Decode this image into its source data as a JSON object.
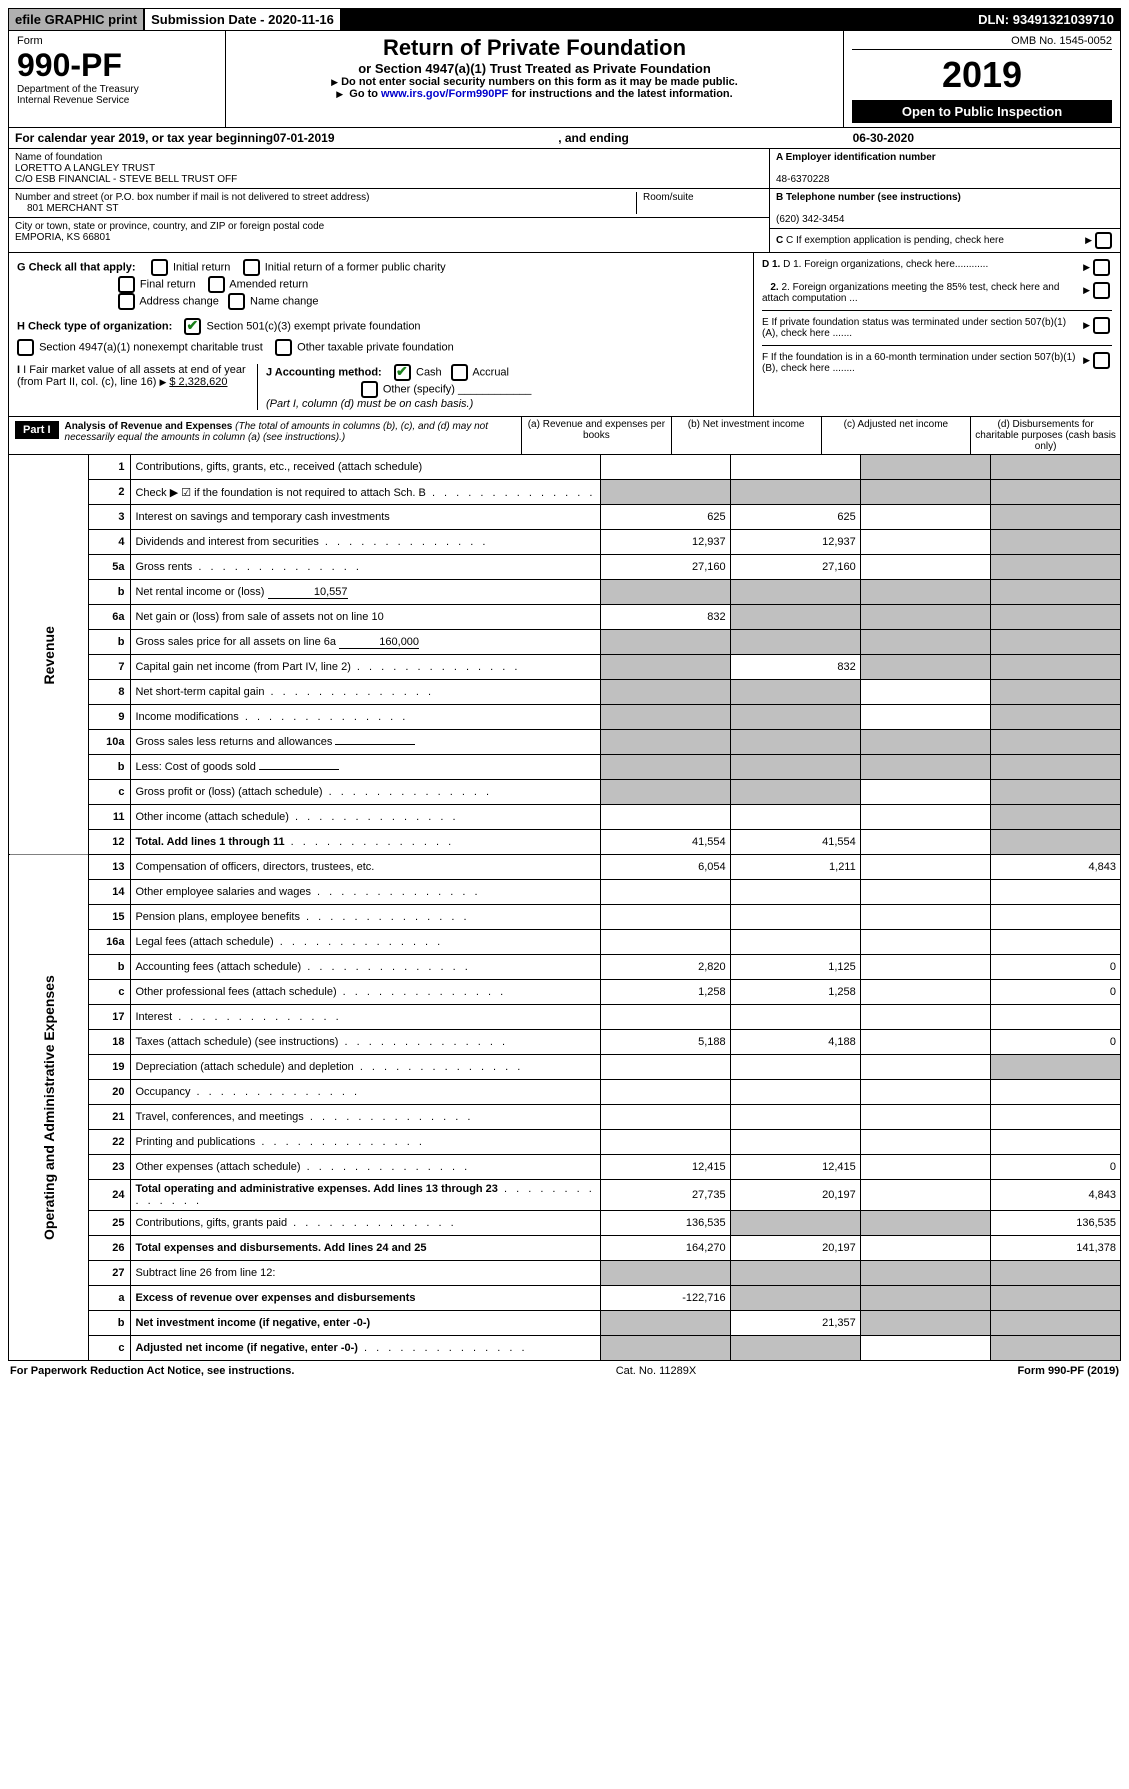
{
  "topbar": {
    "efile": "efile GRAPHIC print",
    "subdate_label": "Submission Date - ",
    "subdate": "2020-11-16",
    "dln_label": "DLN: ",
    "dln": "93491321039710"
  },
  "header": {
    "form_word": "Form",
    "form_num": "990-PF",
    "dept": "Department of the Treasury",
    "irs": "Internal Revenue Service",
    "title": "Return of Private Foundation",
    "subtitle": "or Section 4947(a)(1) Trust Treated as Private Foundation",
    "note1": "Do not enter social security numbers on this form as it may be made public.",
    "note2_pre": "Go to ",
    "note2_link": "www.irs.gov/Form990PF",
    "note2_post": " for instructions and the latest information.",
    "omb": "OMB No. 1545-0052",
    "year": "2019",
    "open": "Open to Public Inspection"
  },
  "calyear": {
    "pre": "For calendar year 2019, or tax year beginning ",
    "begin": "07-01-2019",
    "mid": ", and ending ",
    "end": "06-30-2020"
  },
  "entity": {
    "name_label": "Name of foundation",
    "name1": "LORETTO A LANGLEY TRUST",
    "name2": "C/O ESB FINANCIAL - STEVE BELL TRUST OFF",
    "addr_label": "Number and street (or P.O. box number if mail is not delivered to street address)",
    "room_label": "Room/suite",
    "addr": "801 MERCHANT ST",
    "city_label": "City or town, state or province, country, and ZIP or foreign postal code",
    "city": "EMPORIA, KS  66801",
    "a_label": "A Employer identification number",
    "ein": "48-6370228",
    "b_label": "B Telephone number (see instructions)",
    "phone": "(620) 342-3454",
    "c_label": "C If exemption application is pending, check here"
  },
  "checks": {
    "g_label": "G Check all that apply:",
    "g_opts": [
      "Initial return",
      "Initial return of a former public charity",
      "Final return",
      "Amended return",
      "Address change",
      "Name change"
    ],
    "h_label": "H Check type of organization:",
    "h_opt1": "Section 501(c)(3) exempt private foundation",
    "h_opt2": "Section 4947(a)(1) nonexempt charitable trust",
    "h_opt3": "Other taxable private foundation",
    "i_label": "I Fair market value of all assets at end of year (from Part II, col. (c), line 16)",
    "i_val": "$  2,328,620",
    "j_label": "J Accounting method:",
    "j_cash": "Cash",
    "j_accrual": "Accrual",
    "j_other": "Other (specify)",
    "j_note": "(Part I, column (d) must be on cash basis.)",
    "d1": "D 1. Foreign organizations, check here............",
    "d2": "2. Foreign organizations meeting the 85% test, check here and attach computation ...",
    "e": "E  If private foundation status was terminated under section 507(b)(1)(A), check here .......",
    "f": "F  If the foundation is in a 60-month termination under section 507(b)(1)(B), check here ........"
  },
  "part1": {
    "label": "Part I",
    "title": "Analysis of Revenue and Expenses",
    "note": " (The total of amounts in columns (b), (c), and (d) may not necessarily equal the amounts in column (a) (see instructions).)",
    "col_a": "(a)   Revenue and expenses per books",
    "col_b": "(b)  Net investment income",
    "col_c": "(c)  Adjusted net income",
    "col_d": "(d)  Disbursements for charitable purposes (cash basis only)"
  },
  "side": {
    "revenue": "Revenue",
    "opex": "Operating and Administrative Expenses"
  },
  "rows": [
    {
      "n": "1",
      "d": "Contributions, gifts, grants, etc., received (attach schedule)",
      "a": "",
      "b": "",
      "c": "grey",
      "dd": "grey"
    },
    {
      "n": "2",
      "d": "Check ▶ ☑ if the foundation is not required to attach Sch. B",
      "a": "grey",
      "b": "grey",
      "c": "grey",
      "dd": "grey",
      "dots": true
    },
    {
      "n": "3",
      "d": "Interest on savings and temporary cash investments",
      "a": "625",
      "b": "625",
      "c": "",
      "dd": "grey"
    },
    {
      "n": "4",
      "d": "Dividends and interest from securities",
      "a": "12,937",
      "b": "12,937",
      "c": "",
      "dd": "grey",
      "dots": true
    },
    {
      "n": "5a",
      "d": "Gross rents",
      "a": "27,160",
      "b": "27,160",
      "c": "",
      "dd": "grey",
      "dots": true
    },
    {
      "n": "b",
      "d": "Net rental income or (loss)",
      "inline": "10,557",
      "a": "grey",
      "b": "grey",
      "c": "grey",
      "dd": "grey"
    },
    {
      "n": "6a",
      "d": "Net gain or (loss) from sale of assets not on line 10",
      "a": "832",
      "b": "grey",
      "c": "grey",
      "dd": "grey"
    },
    {
      "n": "b",
      "d": "Gross sales price for all assets on line 6a",
      "inline": "160,000",
      "a": "grey",
      "b": "grey",
      "c": "grey",
      "dd": "grey"
    },
    {
      "n": "7",
      "d": "Capital gain net income (from Part IV, line 2)",
      "a": "grey",
      "b": "832",
      "c": "grey",
      "dd": "grey",
      "dots": true
    },
    {
      "n": "8",
      "d": "Net short-term capital gain",
      "a": "grey",
      "b": "grey",
      "c": "",
      "dd": "grey",
      "dots": true
    },
    {
      "n": "9",
      "d": "Income modifications",
      "a": "grey",
      "b": "grey",
      "c": "",
      "dd": "grey",
      "dots": true
    },
    {
      "n": "10a",
      "d": "Gross sales less returns and allowances",
      "inline": "",
      "a": "grey",
      "b": "grey",
      "c": "grey",
      "dd": "grey"
    },
    {
      "n": "b",
      "d": "Less: Cost of goods sold",
      "inline": "",
      "a": "grey",
      "b": "grey",
      "c": "grey",
      "dd": "grey",
      "dots": true
    },
    {
      "n": "c",
      "d": "Gross profit or (loss) (attach schedule)",
      "a": "grey",
      "b": "grey",
      "c": "",
      "dd": "grey",
      "dots": true
    },
    {
      "n": "11",
      "d": "Other income (attach schedule)",
      "a": "",
      "b": "",
      "c": "",
      "dd": "grey",
      "dots": true
    },
    {
      "n": "12",
      "d": "Total. Add lines 1 through 11",
      "bold": true,
      "a": "41,554",
      "b": "41,554",
      "c": "",
      "dd": "grey",
      "dots": true
    }
  ],
  "oprows": [
    {
      "n": "13",
      "d": "Compensation of officers, directors, trustees, etc.",
      "a": "6,054",
      "b": "1,211",
      "c": "",
      "dd": "4,843"
    },
    {
      "n": "14",
      "d": "Other employee salaries and wages",
      "a": "",
      "b": "",
      "c": "",
      "dd": "",
      "dots": true
    },
    {
      "n": "15",
      "d": "Pension plans, employee benefits",
      "a": "",
      "b": "",
      "c": "",
      "dd": "",
      "dots": true
    },
    {
      "n": "16a",
      "d": "Legal fees (attach schedule)",
      "a": "",
      "b": "",
      "c": "",
      "dd": "",
      "dots": true
    },
    {
      "n": "b",
      "d": "Accounting fees (attach schedule)",
      "a": "2,820",
      "b": "1,125",
      "c": "",
      "dd": "0",
      "dots": true
    },
    {
      "n": "c",
      "d": "Other professional fees (attach schedule)",
      "a": "1,258",
      "b": "1,258",
      "c": "",
      "dd": "0",
      "dots": true
    },
    {
      "n": "17",
      "d": "Interest",
      "a": "",
      "b": "",
      "c": "",
      "dd": "",
      "dots": true
    },
    {
      "n": "18",
      "d": "Taxes (attach schedule) (see instructions)",
      "a": "5,188",
      "b": "4,188",
      "c": "",
      "dd": "0",
      "dots": true
    },
    {
      "n": "19",
      "d": "Depreciation (attach schedule) and depletion",
      "a": "",
      "b": "",
      "c": "",
      "dd": "grey",
      "dots": true
    },
    {
      "n": "20",
      "d": "Occupancy",
      "a": "",
      "b": "",
      "c": "",
      "dd": "",
      "dots": true
    },
    {
      "n": "21",
      "d": "Travel, conferences, and meetings",
      "a": "",
      "b": "",
      "c": "",
      "dd": "",
      "dots": true
    },
    {
      "n": "22",
      "d": "Printing and publications",
      "a": "",
      "b": "",
      "c": "",
      "dd": "",
      "dots": true
    },
    {
      "n": "23",
      "d": "Other expenses (attach schedule)",
      "a": "12,415",
      "b": "12,415",
      "c": "",
      "dd": "0",
      "dots": true
    },
    {
      "n": "24",
      "d": "Total operating and administrative expenses. Add lines 13 through 23",
      "bold": true,
      "a": "27,735",
      "b": "20,197",
      "c": "",
      "dd": "4,843",
      "dots": true
    },
    {
      "n": "25",
      "d": "Contributions, gifts, grants paid",
      "a": "136,535",
      "b": "grey",
      "c": "grey",
      "dd": "136,535",
      "dots": true
    },
    {
      "n": "26",
      "d": "Total expenses and disbursements. Add lines 24 and 25",
      "bold": true,
      "a": "164,270",
      "b": "20,197",
      "c": "",
      "dd": "141,378"
    },
    {
      "n": "27",
      "d": "Subtract line 26 from line 12:",
      "a": "grey",
      "b": "grey",
      "c": "grey",
      "dd": "grey"
    },
    {
      "n": "a",
      "d": "Excess of revenue over expenses and disbursements",
      "bold": true,
      "a": "-122,716",
      "b": "grey",
      "c": "grey",
      "dd": "grey"
    },
    {
      "n": "b",
      "d": "Net investment income (if negative, enter -0-)",
      "bold": true,
      "a": "grey",
      "b": "21,357",
      "c": "grey",
      "dd": "grey"
    },
    {
      "n": "c",
      "d": "Adjusted net income (if negative, enter -0-)",
      "bold": true,
      "a": "grey",
      "b": "grey",
      "c": "",
      "dd": "grey",
      "dots": true
    }
  ],
  "footer": {
    "left": "For Paperwork Reduction Act Notice, see instructions.",
    "mid": "Cat. No. 11289X",
    "right": "Form 990-PF (2019)"
  }
}
